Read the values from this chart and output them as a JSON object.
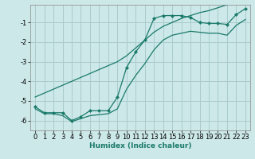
{
  "title": "",
  "xlabel": "Humidex (Indice chaleur)",
  "ylabel": "",
  "background_color": "#cce8e8",
  "grid_color": "#aacccc",
  "line_color": "#1a7a6a",
  "x_data": [
    0,
    1,
    2,
    3,
    4,
    5,
    6,
    7,
    8,
    9,
    10,
    11,
    12,
    13,
    14,
    15,
    16,
    17,
    18,
    19,
    20,
    21,
    22,
    23
  ],
  "y_main": [
    -5.3,
    -5.6,
    -5.6,
    -5.6,
    -6.0,
    -5.8,
    -5.5,
    -5.5,
    -5.5,
    -4.8,
    -3.3,
    -2.5,
    -1.9,
    -0.8,
    -0.65,
    -0.65,
    -0.65,
    -0.75,
    -1.0,
    -1.05,
    -1.05,
    -1.1,
    -0.6,
    -0.3
  ],
  "y_upper": [
    -4.8,
    -4.6,
    -4.4,
    -4.2,
    -4.0,
    -3.8,
    -3.6,
    -3.4,
    -3.2,
    -3.0,
    -2.7,
    -2.3,
    -1.9,
    -1.5,
    -1.2,
    -1.0,
    -0.8,
    -0.65,
    -0.5,
    -0.4,
    -0.25,
    -0.1,
    0.05,
    0.2
  ],
  "y_lower": [
    -5.4,
    -5.65,
    -5.65,
    -5.75,
    -6.05,
    -5.9,
    -5.75,
    -5.7,
    -5.65,
    -5.4,
    -4.4,
    -3.7,
    -3.1,
    -2.4,
    -1.9,
    -1.65,
    -1.55,
    -1.45,
    -1.5,
    -1.55,
    -1.55,
    -1.65,
    -1.15,
    -0.85
  ],
  "xlim": [
    -0.5,
    23.5
  ],
  "ylim": [
    -6.5,
    -0.1
  ],
  "yticks": [
    -6,
    -5,
    -4,
    -3,
    -2,
    -1
  ],
  "xticks": [
    0,
    1,
    2,
    3,
    4,
    5,
    6,
    7,
    8,
    9,
    10,
    11,
    12,
    13,
    14,
    15,
    16,
    17,
    18,
    19,
    20,
    21,
    22,
    23
  ]
}
